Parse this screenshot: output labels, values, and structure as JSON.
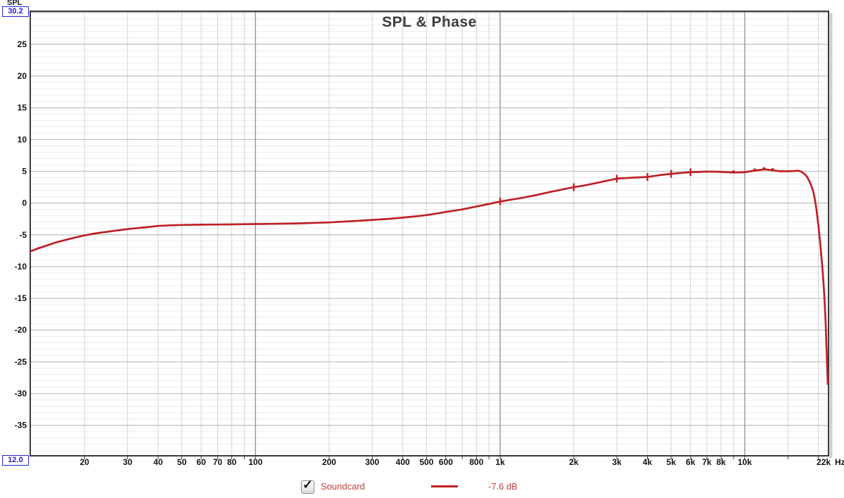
{
  "header": {
    "y_axis_name": "SPL",
    "y_max_value": "30.2",
    "x_min_value": "12.0"
  },
  "legend": {
    "series": "Soundcard",
    "value": "-7.6 dB",
    "checkbox_checked": true,
    "check_glyph": "✓"
  },
  "colors": {
    "curve": "#be2025",
    "legend_text": "#c43c3c",
    "title_text": "#3d3d3d",
    "axis_text": "#111111",
    "accent_blue": "#2323d7",
    "grid_minor_h": "#ececec",
    "grid_major_h": "#c2c2c2",
    "grid_minor_v": "#d2d2d2",
    "grid_major_v": "#8f8f8f",
    "frame": "#3a3a3a",
    "right_shadow": "#cfcfcf"
  },
  "chart_data": {
    "type": "line",
    "title": "SPL & Phase",
    "x_scale": "log",
    "x_range": [
      12,
      22000
    ],
    "y_range": [
      -39.8,
      30.2
    ],
    "xlabel_unit": "Hz",
    "grid": "on",
    "legend_position": "bottom",
    "y_tick_values": [
      25,
      20,
      15,
      10,
      5,
      0,
      -5,
      -10,
      -15,
      -20,
      -25,
      -30,
      -35
    ],
    "y_grid_minor_step": 1,
    "y_grid_major_step": 5,
    "x_tick_labels": [
      {
        "f": 20,
        "label": "20"
      },
      {
        "f": 30,
        "label": "30"
      },
      {
        "f": 40,
        "label": "40"
      },
      {
        "f": 50,
        "label": "50"
      },
      {
        "f": 60,
        "label": "60"
      },
      {
        "f": 70,
        "label": "70"
      },
      {
        "f": 80,
        "label": "80"
      },
      {
        "f": 100,
        "label": "100"
      },
      {
        "f": 200,
        "label": "200"
      },
      {
        "f": 300,
        "label": "300"
      },
      {
        "f": 400,
        "label": "400"
      },
      {
        "f": 500,
        "label": "500"
      },
      {
        "f": 600,
        "label": "600"
      },
      {
        "f": 800,
        "label": "800"
      },
      {
        "f": 1000,
        "label": "1k"
      },
      {
        "f": 2000,
        "label": "2k"
      },
      {
        "f": 3000,
        "label": "3k"
      },
      {
        "f": 4000,
        "label": "4k"
      },
      {
        "f": 5000,
        "label": "5k"
      },
      {
        "f": 6000,
        "label": "6k"
      },
      {
        "f": 7000,
        "label": "7k"
      },
      {
        "f": 8000,
        "label": "8k"
      },
      {
        "f": 10000,
        "label": "10k"
      },
      {
        "f": 22000,
        "label": "22k"
      }
    ],
    "x_grid_minor": [
      20,
      30,
      40,
      50,
      60,
      70,
      80,
      90,
      200,
      300,
      400,
      500,
      600,
      700,
      800,
      900,
      2000,
      3000,
      4000,
      5000,
      6000,
      7000,
      8000,
      9000,
      15000,
      20000
    ],
    "x_grid_major": [
      100,
      1000,
      10000
    ],
    "series": [
      {
        "name": "Soundcard",
        "color": "#be2025",
        "value_label": "-7.6 dB",
        "dash_markers": [
          1000,
          2000,
          3000,
          4000,
          5000,
          6000
        ],
        "dot_markers": [
          9000,
          11000,
          12000,
          13000
        ],
        "points": [
          [
            12,
            -7.6
          ],
          [
            13,
            -7.1
          ],
          [
            14,
            -6.7
          ],
          [
            15,
            -6.3
          ],
          [
            16,
            -6.0
          ],
          [
            18,
            -5.5
          ],
          [
            20,
            -5.1
          ],
          [
            22,
            -4.8
          ],
          [
            25,
            -4.5
          ],
          [
            28,
            -4.25
          ],
          [
            30,
            -4.1
          ],
          [
            35,
            -3.85
          ],
          [
            40,
            -3.6
          ],
          [
            45,
            -3.5
          ],
          [
            50,
            -3.45
          ],
          [
            60,
            -3.4
          ],
          [
            70,
            -3.38
          ],
          [
            80,
            -3.36
          ],
          [
            90,
            -3.33
          ],
          [
            100,
            -3.3
          ],
          [
            120,
            -3.27
          ],
          [
            150,
            -3.2
          ],
          [
            200,
            -3.05
          ],
          [
            250,
            -2.85
          ],
          [
            300,
            -2.65
          ],
          [
            350,
            -2.5
          ],
          [
            400,
            -2.3
          ],
          [
            450,
            -2.1
          ],
          [
            500,
            -1.9
          ],
          [
            550,
            -1.65
          ],
          [
            600,
            -1.4
          ],
          [
            700,
            -1.0
          ],
          [
            800,
            -0.55
          ],
          [
            900,
            -0.15
          ],
          [
            1000,
            0.25
          ],
          [
            1100,
            0.5
          ],
          [
            1200,
            0.75
          ],
          [
            1400,
            1.25
          ],
          [
            1600,
            1.75
          ],
          [
            1800,
            2.15
          ],
          [
            2000,
            2.5
          ],
          [
            2200,
            2.75
          ],
          [
            2500,
            3.2
          ],
          [
            2800,
            3.6
          ],
          [
            3000,
            3.85
          ],
          [
            3500,
            4.0
          ],
          [
            4000,
            4.1
          ],
          [
            4500,
            4.4
          ],
          [
            5000,
            4.6
          ],
          [
            5500,
            4.75
          ],
          [
            6000,
            4.85
          ],
          [
            6500,
            4.9
          ],
          [
            7000,
            4.95
          ],
          [
            7500,
            4.95
          ],
          [
            8000,
            4.9
          ],
          [
            9000,
            4.8
          ],
          [
            10000,
            4.85
          ],
          [
            10500,
            5.0
          ],
          [
            11000,
            5.1
          ],
          [
            12000,
            5.3
          ],
          [
            12500,
            5.25
          ],
          [
            13000,
            5.15
          ],
          [
            14000,
            5.0
          ],
          [
            15000,
            5.0
          ],
          [
            16000,
            5.05
          ],
          [
            16500,
            5.1
          ],
          [
            17000,
            4.95
          ],
          [
            17500,
            4.6
          ],
          [
            18000,
            4.1
          ],
          [
            18500,
            3.2
          ],
          [
            19000,
            2.0
          ],
          [
            19300,
            0.8
          ],
          [
            19600,
            -0.8
          ],
          [
            20000,
            -3.5
          ],
          [
            20400,
            -6.8
          ],
          [
            20800,
            -10.5
          ],
          [
            21100,
            -14.0
          ],
          [
            21400,
            -18.5
          ],
          [
            21600,
            -23.0
          ],
          [
            21750,
            -26.5
          ],
          [
            21850,
            -28.5
          ]
        ]
      }
    ]
  }
}
